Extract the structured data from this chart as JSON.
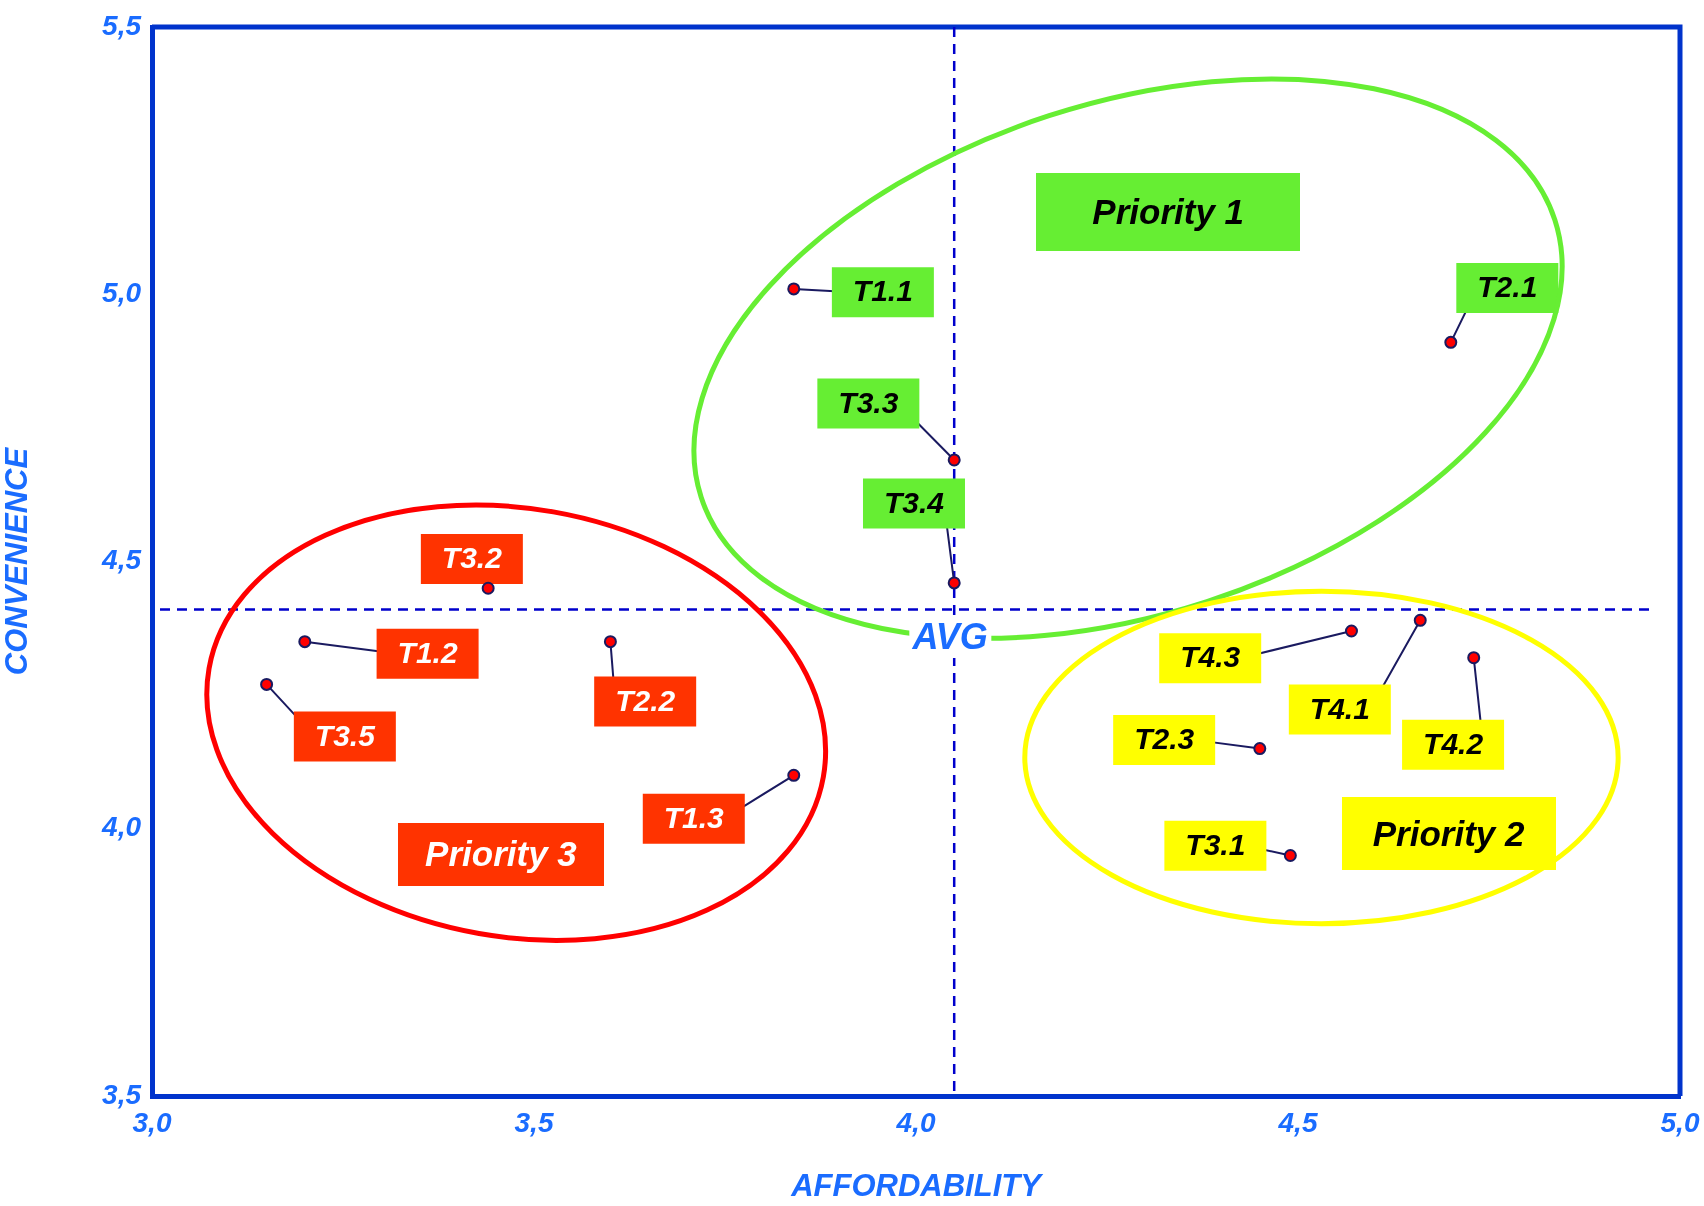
{
  "chart_data": {
    "type": "scatter",
    "xlabel": "AFFORDABILITY",
    "ylabel": "CONVENIENCE",
    "xlim": [
      3,
      5
    ],
    "ylim": [
      3.5,
      5.5
    ],
    "xticks": [
      {
        "value": 3,
        "label": "3,0"
      },
      {
        "value": 3.5,
        "label": "3,5"
      },
      {
        "value": 4,
        "label": "4,0"
      },
      {
        "value": 4.5,
        "label": "4,5"
      },
      {
        "value": 5,
        "label": "5,0"
      }
    ],
    "yticks": [
      {
        "value": 3.5,
        "label": "3,5"
      },
      {
        "value": 4,
        "label": "4,0"
      },
      {
        "value": 4.5,
        "label": "4,5"
      },
      {
        "value": 5,
        "label": "5,0"
      },
      {
        "value": 5.5,
        "label": "5,5"
      }
    ],
    "grid": false,
    "legend": false,
    "marker": "circle",
    "series": [
      {
        "color": "#ff0000",
        "x": [
          3.84,
          4.7,
          4.05,
          4.05,
          3.44,
          3.2,
          3.6,
          3.15,
          3.84,
          4.57,
          4.66,
          4.73,
          4.45,
          4.49
        ],
        "values": [
          5.01,
          4.91,
          4.69,
          4.46,
          4.45,
          4.35,
          4.35,
          4.27,
          4.1,
          4.37,
          4.39,
          4.32,
          4.15,
          3.95
        ]
      }
    ],
    "ref_lines": [
      {
        "axis": "x",
        "value": 4.05,
        "color": "#0000cc",
        "line_style": "dashed"
      },
      {
        "axis": "y",
        "value": 4.41,
        "label": "AVG",
        "color": "#0000cc",
        "line_style": "dashed"
      }
    ],
    "annotations": [
      {
        "text": "T1.1",
        "x": 3.84,
        "y": 5.01
      },
      {
        "text": "T2.1",
        "x": 4.7,
        "y": 4.91
      },
      {
        "text": "T3.3",
        "x": 4.05,
        "y": 4.69
      },
      {
        "text": "T3.4",
        "x": 4.05,
        "y": 4.46
      },
      {
        "text": "T3.2",
        "x": 3.44,
        "y": 4.45
      },
      {
        "text": "T1.2",
        "x": 3.2,
        "y": 4.35
      },
      {
        "text": "T2.2",
        "x": 3.6,
        "y": 4.35
      },
      {
        "text": "T3.5",
        "x": 3.15,
        "y": 4.27
      },
      {
        "text": "T1.3",
        "x": 3.84,
        "y": 4.1
      },
      {
        "text": "T4.3",
        "x": 4.57,
        "y": 4.37
      },
      {
        "text": "T4.1",
        "x": 4.66,
        "y": 4.39
      },
      {
        "text": "T4.2",
        "x": 4.73,
        "y": 4.32
      },
      {
        "text": "T2.3",
        "x": 4.45,
        "y": 4.15
      },
      {
        "text": "T3.1",
        "x": 4.49,
        "y": 3.95
      },
      "Priority 1",
      "Priority 2",
      "Priority 3"
    ]
  }
}
